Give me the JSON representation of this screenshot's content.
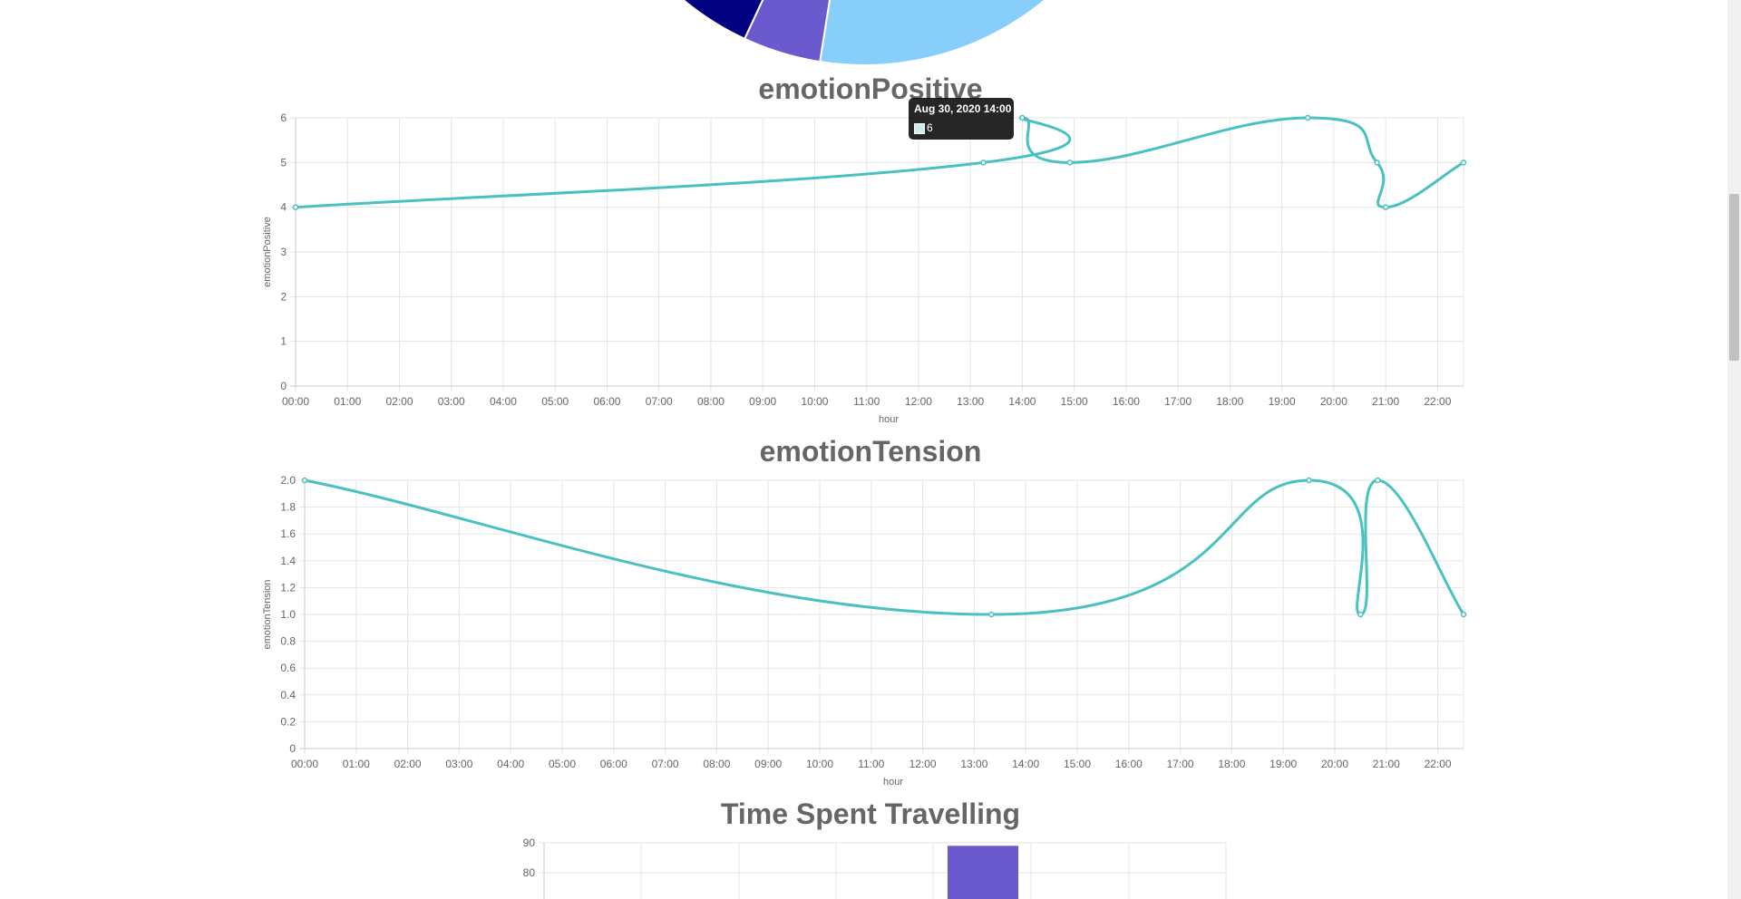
{
  "colors": {
    "line": "#4bc0c0",
    "pie_blue": "#87cefa",
    "pie_purple": "#6a5acd",
    "pie_navy": "#000080",
    "bar": "#6a5acd"
  },
  "tooltip": {
    "title": "Aug 30, 2020 14:00",
    "value": "6"
  },
  "charts": {
    "positive": {
      "title": "emotionPositive"
    },
    "tension": {
      "title": "emotionTension"
    },
    "travel": {
      "title": "Time Spent Travelling"
    }
  },
  "chart_data": [
    {
      "type": "pie",
      "title": "",
      "note": "partially visible (cut off at top)",
      "slices": [
        {
          "color": "#87cefa"
        },
        {
          "color": "#6a5acd"
        },
        {
          "color": "#000080"
        }
      ]
    },
    {
      "type": "line",
      "title": "emotionPositive",
      "xlabel": "hour",
      "ylabel": "emotionPositive",
      "x_ticks": [
        "00:00",
        "01:00",
        "02:00",
        "03:00",
        "04:00",
        "05:00",
        "06:00",
        "07:00",
        "08:00",
        "09:00",
        "10:00",
        "11:00",
        "12:00",
        "13:00",
        "14:00",
        "15:00",
        "16:00",
        "17:00",
        "18:00",
        "19:00",
        "20:00",
        "21:00",
        "22:00"
      ],
      "y_ticks": [
        "0",
        "1",
        "2",
        "3",
        "4",
        "5",
        "6"
      ],
      "ylim": [
        0,
        6
      ],
      "series": [
        {
          "x": [
            "00:00",
            "13:15",
            "14:00",
            "14:55",
            "19:30",
            "20:50",
            "21:00",
            "22:30"
          ],
          "y": [
            4,
            5,
            6,
            5,
            6,
            5,
            4,
            5
          ]
        }
      ]
    },
    {
      "type": "line",
      "title": "emotionTension",
      "xlabel": "hour",
      "ylabel": "emotionTension",
      "x_ticks": [
        "00:00",
        "01:00",
        "02:00",
        "03:00",
        "04:00",
        "05:00",
        "06:00",
        "07:00",
        "08:00",
        "09:00",
        "10:00",
        "11:00",
        "12:00",
        "13:00",
        "14:00",
        "15:00",
        "16:00",
        "17:00",
        "18:00",
        "19:00",
        "20:00",
        "21:00",
        "22:00"
      ],
      "y_ticks": [
        "0",
        "0.2",
        "0.4",
        "0.6",
        "0.8",
        "1.0",
        "1.2",
        "1.4",
        "1.6",
        "1.8",
        "2.0"
      ],
      "ylim": [
        0,
        2
      ],
      "series": [
        {
          "x": [
            "00:00",
            "13:20",
            "19:30",
            "20:30",
            "20:50",
            "22:30"
          ],
          "y": [
            2,
            1,
            2,
            1,
            2,
            1
          ]
        }
      ]
    },
    {
      "type": "bar",
      "title": "Time Spent Travelling",
      "y_ticks": [
        "90",
        "80"
      ],
      "note": "only the top of the chart is visible",
      "series": [
        {
          "values": [
            89
          ]
        }
      ]
    }
  ]
}
